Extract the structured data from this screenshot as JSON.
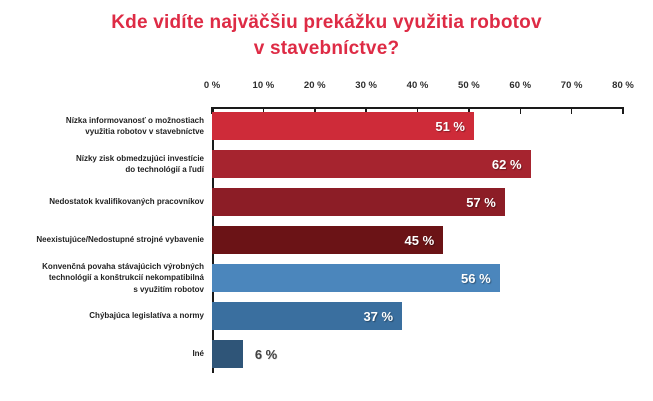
{
  "title": {
    "lines": [
      "Kde vidíte najväčšiu prekážku využitia robotov",
      "v stavebníctve?"
    ],
    "color": "#DE2B45"
  },
  "chart_data": {
    "type": "bar",
    "orientation": "horizontal",
    "title": "Kde vidíte najväčšiu prekážku využitia robotov v stavebníctve?",
    "categories": [
      [
        "Nízka informovanosť o možnostiach",
        "využitia robotov v stavebníctve"
      ],
      [
        "Nízky zisk obmedzujúci investície",
        "do technológií a ľudí"
      ],
      [
        "Nedostatok kvalifikovaných pracovníkov"
      ],
      [
        "Neexistujúce/Nedostupné strojné vybavenie"
      ],
      [
        "Konvenčná povaha stávajúcich výrobných",
        "technológií a konštrukcií nekompatibilná",
        "s využitím robotov"
      ],
      [
        "Chýbajúca legislatíva a normy"
      ],
      [
        "Iné"
      ]
    ],
    "values": [
      51,
      62,
      57,
      45,
      56,
      37,
      6
    ],
    "value_labels": [
      "51 %",
      "62 %",
      "57 %",
      "45 %",
      "56 %",
      "37 %",
      "6 %"
    ],
    "bar_colors": [
      "#CE2B39",
      "#A6242F",
      "#8C1D26",
      "#6B1316",
      "#4B86BC",
      "#3A6F9F",
      "#2F5578"
    ],
    "xlim": [
      0,
      80
    ],
    "x_ticks": [
      "0 %",
      "10 %",
      "20 %",
      "30 %",
      "40 %",
      "50 %",
      "60 %",
      "70 %",
      "80 %"
    ],
    "axis_position": "top",
    "grid": false,
    "legend": false,
    "outside_label_threshold": 10
  }
}
